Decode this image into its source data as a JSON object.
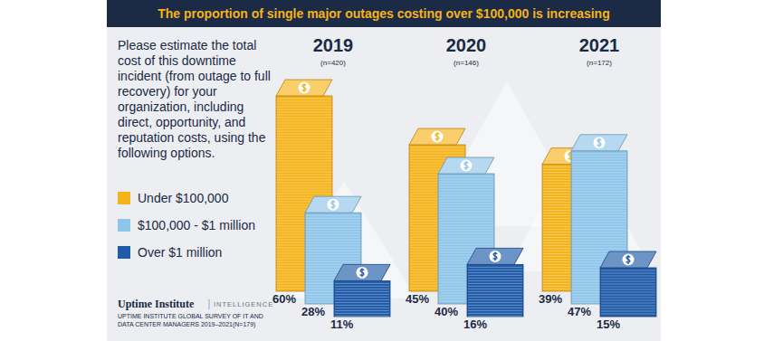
{
  "chart_data": {
    "type": "bar",
    "title": "The proportion of single major outages costing over $100,000 is increasing",
    "subtitle": "Please estimate the total cost of this downtime incident (from outage to full recovery) for your organization, including direct, opportunity, and reputation costs, using the following options.",
    "categories": [
      "2019",
      "2020",
      "2021"
    ],
    "annotations": [
      "(n=420)",
      "(n=146)",
      "(n=172)"
    ],
    "series": [
      {
        "name": "Under $100,000",
        "color": "#f5b31b",
        "values": [
          60,
          45,
          39
        ],
        "value_labels": [
          "60%",
          "45%",
          "39%"
        ]
      },
      {
        "name": "$100,000 - $1 million",
        "color": "#8ec5ea",
        "values": [
          28,
          40,
          47
        ],
        "value_labels": [
          "28%",
          "40%",
          "47%"
        ]
      },
      {
        "name": "Over $1 million",
        "color": "#1f5ba8",
        "values": [
          11,
          16,
          15
        ],
        "value_labels": [
          "11%",
          "16%",
          "15%"
        ]
      }
    ],
    "legend": "left",
    "data_labels": true,
    "tick_labels": false,
    "logo": "Uptime Institute",
    "logo_tag": "INTELLIGENCE",
    "source": [
      "UPTIME INSTITUTE GLOBAL SURVEY OF IT AND",
      "DATA CENTER MANAGERS 2019–2021(N=179)"
    ]
  }
}
